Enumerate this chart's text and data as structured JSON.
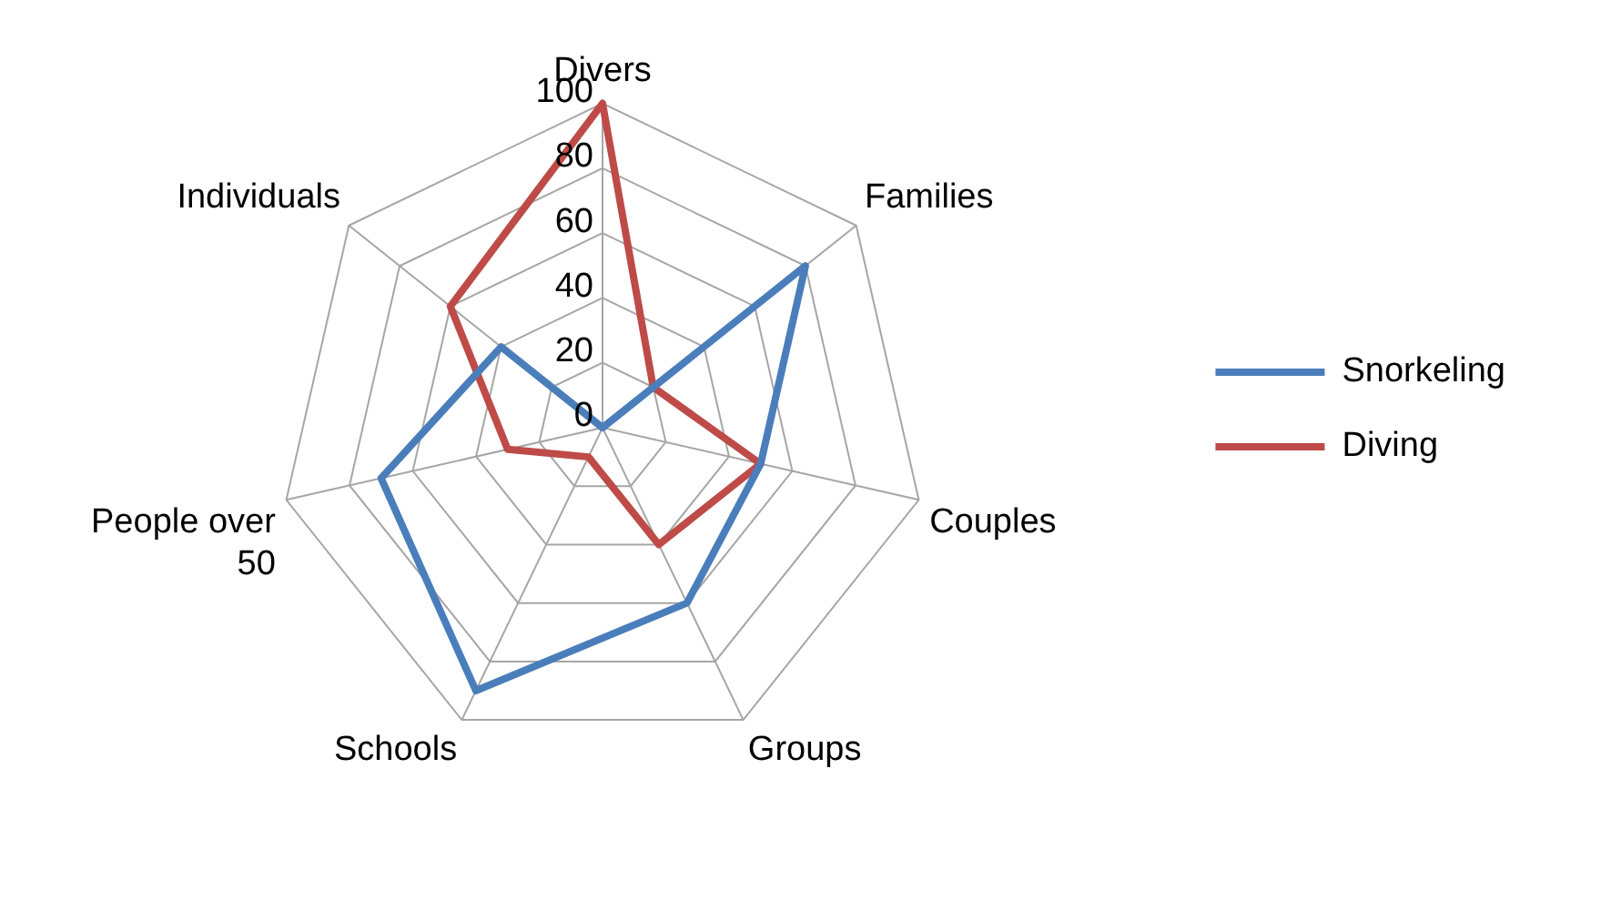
{
  "chart_data": {
    "type": "radar",
    "categories": [
      "Divers",
      "Families",
      "Couples",
      "Groups",
      "Schools",
      "People over 50",
      "Individuals"
    ],
    "series": [
      {
        "name": "Snorkeling",
        "color": "#4a7ebb",
        "values": [
          0,
          80,
          50,
          60,
          90,
          70,
          40
        ]
      },
      {
        "name": "Diving",
        "color": "#be4b48",
        "values": [
          100,
          20,
          50,
          40,
          10,
          30,
          60
        ]
      }
    ],
    "ylim": [
      0,
      100
    ],
    "yticks": [
      0,
      20,
      40,
      60,
      80,
      100
    ],
    "grid": true,
    "legend": "right",
    "marker": "none",
    "line_style": "solid"
  }
}
